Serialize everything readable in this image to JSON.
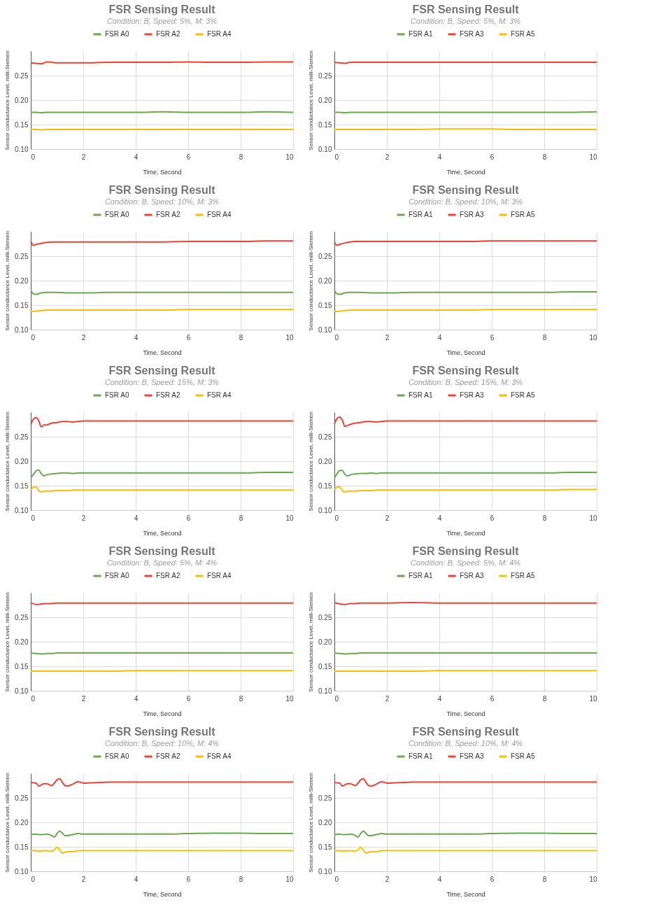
{
  "chart_data": [
    {
      "type": "line",
      "title": "FSR Sensing Result",
      "subtitle": "Condition: B, Speed: 5%, M: 3%",
      "xlabel": "Time, Second",
      "ylabel": "Sensor conductance Level, milli-Siemen",
      "xlim": [
        0,
        10
      ],
      "ylim": [
        0.1,
        0.3
      ],
      "xticks": [
        0,
        2,
        4,
        6,
        8,
        10
      ],
      "yticks": [
        {
          "value": 0.1,
          "label": "0.10"
        },
        {
          "value": 0.15,
          "label": "0.15"
        },
        {
          "value": 0.2,
          "label": "0.20"
        },
        {
          "value": 0.25,
          "label": "0.25"
        }
      ],
      "grid": true,
      "legend": "top",
      "x": [
        0,
        0.2,
        0.4,
        0.6,
        0.8,
        1,
        1.5,
        2,
        3,
        4,
        5,
        6,
        7,
        8,
        9,
        10
      ],
      "series": [
        {
          "name": "FSR A0",
          "color": "#6aa84f",
          "values": [
            0.175,
            0.175,
            0.174,
            0.175,
            0.175,
            0.175,
            0.175,
            0.175,
            0.175,
            0.175,
            0.176,
            0.175,
            0.175,
            0.175,
            0.176,
            0.175
          ]
        },
        {
          "name": "FSR A2",
          "color": "#ea4335",
          "values": [
            0.276,
            0.275,
            0.274,
            0.278,
            0.277,
            0.276,
            0.276,
            0.276,
            0.277,
            0.277,
            0.277,
            0.278,
            0.277,
            0.277,
            0.278,
            0.278
          ]
        },
        {
          "name": "FSR A4",
          "color": "#fbbc04",
          "values": [
            0.14,
            0.14,
            0.139,
            0.14,
            0.14,
            0.14,
            0.14,
            0.14,
            0.14,
            0.14,
            0.14,
            0.14,
            0.14,
            0.14,
            0.14,
            0.14
          ]
        }
      ]
    },
    {
      "type": "line",
      "title": "FSR Sensing Result",
      "subtitle": "Condition: B, Speed: 5%, M: 3%",
      "xlabel": "Time, Second",
      "ylabel": "Sensor conductance Level, milli-Siemen",
      "xlim": [
        0,
        10
      ],
      "ylim": [
        0.1,
        0.3
      ],
      "xticks": [
        0,
        2,
        4,
        6,
        8,
        10
      ],
      "yticks": [
        {
          "value": 0.1,
          "label": "0.10"
        },
        {
          "value": 0.15,
          "label": "0.15"
        },
        {
          "value": 0.2,
          "label": "0.20"
        },
        {
          "value": 0.25,
          "label": "0.25"
        }
      ],
      "grid": true,
      "legend": "top",
      "x": [
        0,
        0.2,
        0.4,
        0.6,
        0.8,
        1,
        1.5,
        2,
        3,
        4,
        5,
        6,
        7,
        8,
        9,
        10
      ],
      "series": [
        {
          "name": "FSR A1",
          "color": "#6aa84f",
          "values": [
            0.175,
            0.175,
            0.174,
            0.175,
            0.175,
            0.175,
            0.175,
            0.175,
            0.175,
            0.175,
            0.175,
            0.175,
            0.175,
            0.175,
            0.175,
            0.176
          ]
        },
        {
          "name": "FSR A3",
          "color": "#ea4335",
          "values": [
            0.277,
            0.276,
            0.275,
            0.277,
            0.277,
            0.277,
            0.277,
            0.277,
            0.277,
            0.277,
            0.277,
            0.277,
            0.277,
            0.277,
            0.277,
            0.277
          ]
        },
        {
          "name": "FSR A5",
          "color": "#fbbc04",
          "values": [
            0.14,
            0.14,
            0.14,
            0.14,
            0.14,
            0.14,
            0.14,
            0.14,
            0.14,
            0.141,
            0.141,
            0.141,
            0.14,
            0.14,
            0.14,
            0.14
          ]
        }
      ]
    },
    {
      "type": "line",
      "title": "FSR Sensing Result",
      "subtitle": "Condition: B, Speed: 10%, M: 3%",
      "xlabel": "Time, Second",
      "ylabel": "Sensor conductance Level, milli-Siemen",
      "xlim": [
        0,
        10
      ],
      "ylim": [
        0.1,
        0.3
      ],
      "xticks": [
        0,
        2,
        4,
        6,
        8,
        10
      ],
      "yticks": [
        {
          "value": 0.1,
          "label": "0.10"
        },
        {
          "value": 0.15,
          "label": "0.15"
        },
        {
          "value": 0.2,
          "label": "0.20"
        },
        {
          "value": 0.25,
          "label": "0.25"
        }
      ],
      "grid": true,
      "legend": "top",
      "x": [
        0,
        0.1,
        0.2,
        0.4,
        0.6,
        0.8,
        1,
        1.5,
        2,
        3,
        4,
        5,
        6,
        7,
        8,
        9,
        10
      ],
      "series": [
        {
          "name": "FSR A0",
          "color": "#6aa84f",
          "values": [
            0.18,
            0.173,
            0.172,
            0.175,
            0.176,
            0.176,
            0.176,
            0.175,
            0.175,
            0.176,
            0.176,
            0.176,
            0.176,
            0.176,
            0.176,
            0.176,
            0.176
          ]
        },
        {
          "name": "FSR A2",
          "color": "#ea4335",
          "values": [
            0.28,
            0.272,
            0.274,
            0.276,
            0.278,
            0.279,
            0.279,
            0.279,
            0.279,
            0.279,
            0.279,
            0.279,
            0.28,
            0.28,
            0.28,
            0.281,
            0.281
          ]
        },
        {
          "name": "FSR A4",
          "color": "#fbbc04",
          "values": [
            0.138,
            0.137,
            0.138,
            0.139,
            0.14,
            0.14,
            0.14,
            0.14,
            0.14,
            0.14,
            0.14,
            0.14,
            0.141,
            0.141,
            0.141,
            0.141,
            0.141
          ]
        }
      ]
    },
    {
      "type": "line",
      "title": "FSR Sensing Result",
      "subtitle": "Condition: B, Speed: 10%, M: 3%",
      "xlabel": "Time, Second",
      "ylabel": "Sensor conductance Level, milli-Siemen",
      "xlim": [
        0,
        10
      ],
      "ylim": [
        0.1,
        0.3
      ],
      "xticks": [
        0,
        2,
        4,
        6,
        8,
        10
      ],
      "yticks": [
        {
          "value": 0.1,
          "label": "0.10"
        },
        {
          "value": 0.15,
          "label": "0.15"
        },
        {
          "value": 0.2,
          "label": "0.20"
        },
        {
          "value": 0.25,
          "label": "0.25"
        }
      ],
      "grid": true,
      "legend": "top",
      "x": [
        0,
        0.1,
        0.2,
        0.4,
        0.6,
        0.8,
        1,
        1.5,
        2,
        3,
        4,
        5,
        6,
        7,
        8,
        9,
        10
      ],
      "series": [
        {
          "name": "FSR A1",
          "color": "#6aa84f",
          "values": [
            0.18,
            0.173,
            0.172,
            0.175,
            0.176,
            0.176,
            0.176,
            0.175,
            0.175,
            0.176,
            0.176,
            0.176,
            0.176,
            0.176,
            0.176,
            0.177,
            0.177
          ]
        },
        {
          "name": "FSR A3",
          "color": "#ea4335",
          "values": [
            0.279,
            0.272,
            0.274,
            0.277,
            0.279,
            0.28,
            0.28,
            0.28,
            0.28,
            0.28,
            0.28,
            0.28,
            0.281,
            0.281,
            0.281,
            0.281,
            0.281
          ]
        },
        {
          "name": "FSR A5",
          "color": "#fbbc04",
          "values": [
            0.138,
            0.137,
            0.138,
            0.139,
            0.14,
            0.14,
            0.14,
            0.14,
            0.14,
            0.14,
            0.14,
            0.14,
            0.141,
            0.141,
            0.141,
            0.141,
            0.141
          ]
        }
      ]
    },
    {
      "type": "line",
      "title": "FSR Sensing Result",
      "subtitle": "Condition: B, Speed: 15%, M: 3%",
      "xlabel": "Time, Second",
      "ylabel": "Sensor conductance Level, milli-Siemen",
      "xlim": [
        0,
        10
      ],
      "ylim": [
        0.1,
        0.3
      ],
      "xticks": [
        0,
        2,
        4,
        6,
        8,
        10
      ],
      "yticks": [
        {
          "value": 0.1,
          "label": "0.10"
        },
        {
          "value": 0.15,
          "label": "0.15"
        },
        {
          "value": 0.2,
          "label": "0.20"
        },
        {
          "value": 0.25,
          "label": "0.25"
        }
      ],
      "grid": true,
      "legend": "top",
      "x": [
        0,
        0.1,
        0.2,
        0.3,
        0.4,
        0.5,
        0.6,
        0.8,
        1,
        1.2,
        1.4,
        1.6,
        1.8,
        2,
        3,
        4,
        5,
        6,
        7,
        8,
        9,
        10
      ],
      "series": [
        {
          "name": "FSR A0",
          "color": "#6aa84f",
          "values": [
            0.166,
            0.173,
            0.18,
            0.182,
            0.174,
            0.17,
            0.172,
            0.174,
            0.175,
            0.176,
            0.176,
            0.175,
            0.176,
            0.176,
            0.176,
            0.176,
            0.176,
            0.176,
            0.176,
            0.176,
            0.177,
            0.177
          ]
        },
        {
          "name": "FSR A2",
          "color": "#ea4335",
          "values": [
            0.275,
            0.286,
            0.289,
            0.283,
            0.27,
            0.274,
            0.274,
            0.278,
            0.279,
            0.281,
            0.281,
            0.28,
            0.281,
            0.282,
            0.282,
            0.282,
            0.282,
            0.282,
            0.282,
            0.282,
            0.282,
            0.282
          ]
        },
        {
          "name": "FSR A4",
          "color": "#fbbc04",
          "values": [
            0.142,
            0.147,
            0.148,
            0.14,
            0.137,
            0.139,
            0.139,
            0.139,
            0.14,
            0.14,
            0.14,
            0.141,
            0.141,
            0.141,
            0.141,
            0.141,
            0.141,
            0.141,
            0.141,
            0.141,
            0.141,
            0.141
          ]
        }
      ]
    },
    {
      "type": "line",
      "title": "FSR Sensing Result",
      "subtitle": "Condition: B, Speed: 15%, M: 3%",
      "xlabel": "Time, Second",
      "ylabel": "Sensor conductance Level, milli-Siemen",
      "xlim": [
        0,
        10
      ],
      "ylim": [
        0.1,
        0.3
      ],
      "xticks": [
        0,
        2,
        4,
        6,
        8,
        10
      ],
      "yticks": [
        {
          "value": 0.1,
          "label": "0.10"
        },
        {
          "value": 0.15,
          "label": "0.15"
        },
        {
          "value": 0.2,
          "label": "0.20"
        },
        {
          "value": 0.25,
          "label": "0.25"
        }
      ],
      "grid": true,
      "legend": "top",
      "x": [
        0,
        0.1,
        0.2,
        0.3,
        0.4,
        0.5,
        0.6,
        0.8,
        1,
        1.2,
        1.4,
        1.6,
        1.8,
        2,
        3,
        4,
        5,
        6,
        7,
        8,
        9,
        10
      ],
      "series": [
        {
          "name": "FSR A1",
          "color": "#6aa84f",
          "values": [
            0.166,
            0.174,
            0.181,
            0.181,
            0.173,
            0.17,
            0.172,
            0.174,
            0.175,
            0.175,
            0.176,
            0.175,
            0.176,
            0.176,
            0.176,
            0.176,
            0.176,
            0.176,
            0.176,
            0.176,
            0.177,
            0.177
          ]
        },
        {
          "name": "FSR A3",
          "color": "#ea4335",
          "values": [
            0.276,
            0.287,
            0.29,
            0.284,
            0.271,
            0.273,
            0.275,
            0.278,
            0.279,
            0.281,
            0.281,
            0.28,
            0.281,
            0.282,
            0.282,
            0.282,
            0.282,
            0.282,
            0.282,
            0.282,
            0.282,
            0.282
          ]
        },
        {
          "name": "FSR A5",
          "color": "#fbbc04",
          "values": [
            0.142,
            0.147,
            0.148,
            0.14,
            0.137,
            0.139,
            0.139,
            0.139,
            0.14,
            0.14,
            0.14,
            0.141,
            0.141,
            0.141,
            0.141,
            0.141,
            0.141,
            0.141,
            0.141,
            0.141,
            0.142,
            0.142
          ]
        }
      ]
    },
    {
      "type": "line",
      "title": "FSR Sensing Result",
      "subtitle": "Condition: B, Speed: 5%, M: 4%",
      "xlabel": "Time, Second",
      "ylabel": "Sensor conductance Level, milli-Siemen",
      "xlim": [
        0,
        10
      ],
      "ylim": [
        0.1,
        0.3
      ],
      "xticks": [
        0,
        2,
        4,
        6,
        8,
        10
      ],
      "yticks": [
        {
          "value": 0.1,
          "label": "0.10"
        },
        {
          "value": 0.15,
          "label": "0.15"
        },
        {
          "value": 0.2,
          "label": "0.20"
        },
        {
          "value": 0.25,
          "label": "0.25"
        }
      ],
      "grid": true,
      "legend": "top",
      "x": [
        0,
        0.2,
        0.4,
        0.6,
        0.8,
        1,
        1.5,
        2,
        3,
        4,
        5,
        6,
        7,
        8,
        9,
        10
      ],
      "series": [
        {
          "name": "FSR A0",
          "color": "#6aa84f",
          "values": [
            0.177,
            0.176,
            0.175,
            0.176,
            0.176,
            0.177,
            0.177,
            0.177,
            0.177,
            0.177,
            0.177,
            0.177,
            0.177,
            0.177,
            0.177,
            0.177
          ]
        },
        {
          "name": "FSR A2",
          "color": "#ea4335",
          "values": [
            0.28,
            0.276,
            0.277,
            0.278,
            0.278,
            0.279,
            0.279,
            0.279,
            0.279,
            0.279,
            0.279,
            0.279,
            0.279,
            0.279,
            0.279,
            0.279
          ]
        },
        {
          "name": "FSR A4",
          "color": "#fbbc04",
          "values": [
            0.14,
            0.14,
            0.14,
            0.14,
            0.14,
            0.14,
            0.14,
            0.14,
            0.14,
            0.141,
            0.141,
            0.141,
            0.141,
            0.141,
            0.141,
            0.141
          ]
        }
      ]
    },
    {
      "type": "line",
      "title": "FSR Sensing Result",
      "subtitle": "Condition: B, Speed: 5%, M: 4%",
      "xlabel": "Time, Second",
      "ylabel": "Sensor conductance Level, milli-Siemen",
      "xlim": [
        0,
        10
      ],
      "ylim": [
        0.1,
        0.3
      ],
      "xticks": [
        0,
        2,
        4,
        6,
        8,
        10
      ],
      "yticks": [
        {
          "value": 0.1,
          "label": "0.10"
        },
        {
          "value": 0.15,
          "label": "0.15"
        },
        {
          "value": 0.2,
          "label": "0.20"
        },
        {
          "value": 0.25,
          "label": "0.25"
        }
      ],
      "grid": true,
      "legend": "top",
      "x": [
        0,
        0.2,
        0.4,
        0.6,
        0.8,
        1,
        1.5,
        2,
        3,
        4,
        5,
        6,
        7,
        8,
        9,
        10
      ],
      "series": [
        {
          "name": "FSR A1",
          "color": "#6aa84f",
          "values": [
            0.177,
            0.176,
            0.175,
            0.176,
            0.176,
            0.177,
            0.177,
            0.177,
            0.177,
            0.177,
            0.177,
            0.177,
            0.177,
            0.177,
            0.177,
            0.177
          ]
        },
        {
          "name": "FSR A3",
          "color": "#ea4335",
          "values": [
            0.28,
            0.277,
            0.276,
            0.278,
            0.278,
            0.279,
            0.279,
            0.279,
            0.28,
            0.279,
            0.279,
            0.279,
            0.279,
            0.279,
            0.279,
            0.279
          ]
        },
        {
          "name": "FSR A5",
          "color": "#fbbc04",
          "values": [
            0.14,
            0.14,
            0.14,
            0.14,
            0.14,
            0.14,
            0.14,
            0.14,
            0.14,
            0.141,
            0.141,
            0.141,
            0.141,
            0.141,
            0.141,
            0.141
          ]
        }
      ]
    },
    {
      "type": "line",
      "title": "FSR Sensing Result",
      "subtitle": "Condition: B, Speed: 10%, M: 4%",
      "xlabel": "Time, Second",
      "ylabel": "Sensor conductance Level, milli-Siemen",
      "xlim": [
        0,
        10
      ],
      "ylim": [
        0.1,
        0.3
      ],
      "xticks": [
        0,
        2,
        4,
        6,
        8,
        10
      ],
      "yticks": [
        {
          "value": 0.1,
          "label": "0.10"
        },
        {
          "value": 0.15,
          "label": "0.15"
        },
        {
          "value": 0.2,
          "label": "0.20"
        },
        {
          "value": 0.25,
          "label": "0.25"
        }
      ],
      "grid": true,
      "legend": "top",
      "x": [
        0,
        0.2,
        0.3,
        0.5,
        0.6,
        0.8,
        0.9,
        1,
        1.1,
        1.2,
        1.3,
        1.4,
        1.6,
        1.8,
        2,
        3,
        4,
        5,
        6,
        7,
        8,
        9,
        10
      ],
      "series": [
        {
          "name": "FSR A0",
          "color": "#6aa84f",
          "values": [
            0.175,
            0.176,
            0.175,
            0.175,
            0.176,
            0.173,
            0.17,
            0.177,
            0.182,
            0.178,
            0.173,
            0.173,
            0.175,
            0.177,
            0.176,
            0.176,
            0.176,
            0.176,
            0.177,
            0.178,
            0.178,
            0.177,
            0.177
          ]
        },
        {
          "name": "FSR A2",
          "color": "#ea4335",
          "values": [
            0.281,
            0.28,
            0.274,
            0.279,
            0.279,
            0.275,
            0.28,
            0.287,
            0.289,
            0.282,
            0.275,
            0.274,
            0.278,
            0.283,
            0.28,
            0.282,
            0.282,
            0.282,
            0.282,
            0.282,
            0.282,
            0.282,
            0.282
          ]
        },
        {
          "name": "FSR A4",
          "color": "#fbbc04",
          "values": [
            0.142,
            0.142,
            0.141,
            0.142,
            0.142,
            0.141,
            0.144,
            0.149,
            0.144,
            0.137,
            0.139,
            0.14,
            0.14,
            0.142,
            0.142,
            0.142,
            0.142,
            0.142,
            0.142,
            0.142,
            0.142,
            0.142,
            0.142
          ]
        }
      ]
    },
    {
      "type": "line",
      "title": "FSR Sensing Result",
      "subtitle": "Condition: B, Speed: 10%, M: 4%",
      "xlabel": "Time, Second",
      "ylabel": "Sensor conductance Level, milli-Siemen",
      "xlim": [
        0,
        10
      ],
      "ylim": [
        0.1,
        0.3
      ],
      "xticks": [
        0,
        2,
        4,
        6,
        8,
        10
      ],
      "yticks": [
        {
          "value": 0.1,
          "label": "0.10"
        },
        {
          "value": 0.15,
          "label": "0.15"
        },
        {
          "value": 0.2,
          "label": "0.20"
        },
        {
          "value": 0.25,
          "label": "0.25"
        }
      ],
      "grid": true,
      "legend": "top",
      "x": [
        0,
        0.2,
        0.3,
        0.5,
        0.6,
        0.8,
        0.9,
        1,
        1.1,
        1.2,
        1.3,
        1.4,
        1.6,
        1.8,
        2,
        3,
        4,
        5,
        6,
        7,
        8,
        9,
        10
      ],
      "series": [
        {
          "name": "FSR A1",
          "color": "#6aa84f",
          "values": [
            0.175,
            0.176,
            0.175,
            0.175,
            0.176,
            0.173,
            0.17,
            0.177,
            0.182,
            0.178,
            0.173,
            0.173,
            0.175,
            0.177,
            0.176,
            0.176,
            0.176,
            0.176,
            0.177,
            0.178,
            0.178,
            0.177,
            0.177
          ]
        },
        {
          "name": "FSR A3",
          "color": "#ea4335",
          "values": [
            0.281,
            0.28,
            0.274,
            0.279,
            0.279,
            0.275,
            0.28,
            0.287,
            0.289,
            0.282,
            0.275,
            0.274,
            0.278,
            0.283,
            0.28,
            0.282,
            0.282,
            0.282,
            0.282,
            0.282,
            0.282,
            0.282,
            0.282
          ]
        },
        {
          "name": "FSR A5",
          "color": "#fbbc04",
          "values": [
            0.142,
            0.142,
            0.141,
            0.142,
            0.142,
            0.141,
            0.144,
            0.149,
            0.144,
            0.137,
            0.139,
            0.14,
            0.14,
            0.142,
            0.142,
            0.142,
            0.142,
            0.142,
            0.142,
            0.142,
            0.142,
            0.142,
            0.142
          ]
        }
      ]
    }
  ]
}
